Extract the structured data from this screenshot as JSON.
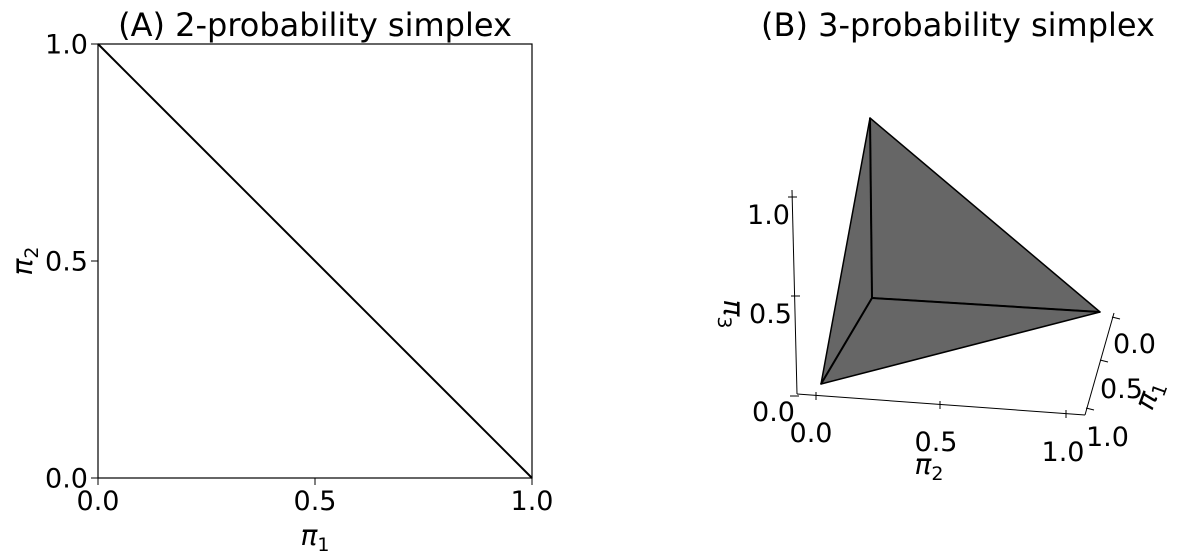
{
  "chart_data": [
    {
      "type": "line",
      "title": "(A) 2-probability simplex",
      "xlabel": "π",
      "xlabel_sub": "1",
      "ylabel": "π",
      "ylabel_sub": "2",
      "xlim": [
        0.0,
        1.0
      ],
      "ylim": [
        0.0,
        1.0
      ],
      "xticks": [
        "0.0",
        "0.5",
        "1.0"
      ],
      "yticks": [
        "0.0",
        "0.5",
        "1.0"
      ],
      "grid": false,
      "series": [
        {
          "x": [
            0.0,
            1.0
          ],
          "y": [
            1.0,
            0.0
          ]
        }
      ]
    },
    {
      "type": "surface3d",
      "title": "(B) 3-probability simplex",
      "xlabel": "π",
      "xlabel_sub": "1",
      "ylabel": "π",
      "ylabel_sub": "2",
      "zlabel": "π",
      "zlabel_sub": "3",
      "xticks": [
        "0.0",
        "0.5",
        "1.0"
      ],
      "yticks": [
        "0.0",
        "0.5",
        "1.0"
      ],
      "zticks": [
        "0.0",
        "0.5",
        "1.0"
      ],
      "face_color": "#666666",
      "vertices": [
        {
          "x": 1.0,
          "y": 0.0,
          "z": 0.0
        },
        {
          "x": 0.0,
          "y": 1.0,
          "z": 0.0
        },
        {
          "x": 0.0,
          "y": 0.0,
          "z": 1.0
        },
        {
          "x": 0.0,
          "y": 0.0,
          "z": 0.0
        }
      ]
    }
  ]
}
